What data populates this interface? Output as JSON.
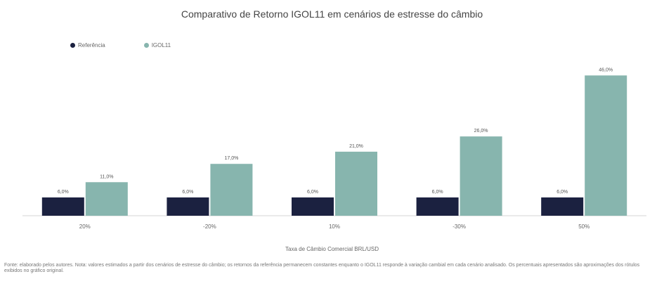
{
  "chart_data": {
    "type": "bar",
    "title": "Comparativo de Retorno IGOL11 em cenários de estresse do câmbio",
    "categories": [
      "20%",
      "-20%",
      "10%",
      "-30%",
      "50%"
    ],
    "series": [
      {
        "name": "Referência",
        "color": "#1b2140",
        "values": [
          6.0,
          6.0,
          6.0,
          6.0,
          6.0
        ]
      },
      {
        "name": "IGOL11",
        "color": "#87b5ae",
        "values": [
          11.0,
          17.0,
          21.0,
          26.0,
          46.0
        ]
      }
    ],
    "data_labels": [
      [
        "6,0%",
        "11,0%"
      ],
      [
        "6,0%",
        "17,0%"
      ],
      [
        "6,0%",
        "21,0%"
      ],
      [
        "6,0%",
        "26,0%"
      ],
      [
        "6,0%",
        "46,0%"
      ]
    ],
    "ylim": [
      0,
      50
    ],
    "grid": false,
    "legend_position": "top-left",
    "xlabel": "Taxa de Câmbio Comercial BRL/USD",
    "ylabel": ""
  },
  "footnote": "Fonte: elaborado pelos autores. Nota: valores estimados a partir dos cenários de estresse do câmbio; os retornos da referência permanecem constantes enquanto o IGOL11 responde à variação cambial em cada cenário analisado. Os percentuais apresentados são aproximações dos rótulos exibidos no gráfico original."
}
